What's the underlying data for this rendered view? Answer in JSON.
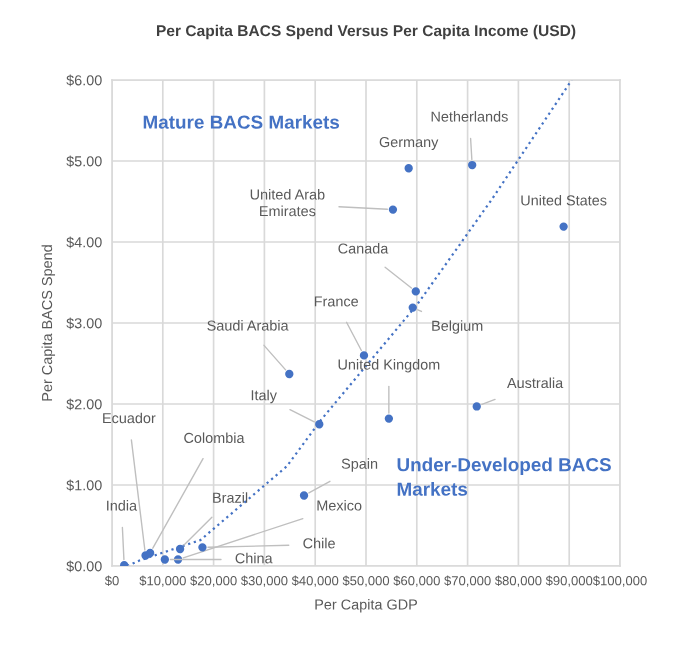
{
  "chart_data": {
    "type": "scatter",
    "title": "Per Capita BACS Spend Versus Per Capita Income (USD)",
    "xlabel": "Per Capita GDP",
    "ylabel": "Per Capita BACS Spend",
    "xlim": [
      0,
      100000
    ],
    "ylim": [
      0,
      6
    ],
    "xticks": [
      {
        "value": 0,
        "label": "$0"
      },
      {
        "value": 10000,
        "label": "$10,000"
      },
      {
        "value": 20000,
        "label": "$20,000"
      },
      {
        "value": 30000,
        "label": "$30,000"
      },
      {
        "value": 40000,
        "label": "$40,000"
      },
      {
        "value": 50000,
        "label": "$50,000"
      },
      {
        "value": 60000,
        "label": "$60,000"
      },
      {
        "value": 70000,
        "label": "$70,000"
      },
      {
        "value": 80000,
        "label": "$80,000"
      },
      {
        "value": 90000,
        "label": "$90,000"
      },
      {
        "value": 100000,
        "label": "$100,000"
      }
    ],
    "yticks": [
      {
        "value": 0,
        "label": "$0.00"
      },
      {
        "value": 1,
        "label": "$1.00"
      },
      {
        "value": 2,
        "label": "$2.00"
      },
      {
        "value": 3,
        "label": "$3.00"
      },
      {
        "value": 4,
        "label": "$4.00"
      },
      {
        "value": 5,
        "label": "$5.00"
      },
      {
        "value": 6,
        "label": "$6.00"
      }
    ],
    "grid": true,
    "marker": "circle",
    "annotations": [
      "Mature BACS Markets",
      "Under-Developed BACS\nMarkets"
    ],
    "series": [
      {
        "name": "India",
        "color": "#4472c4",
        "x": [
          2400
        ],
        "values": [
          0.01
        ]
      },
      {
        "name": "Ecuador",
        "color": "#4472c4",
        "x": [
          6600
        ],
        "values": [
          0.13
        ]
      },
      {
        "name": "Colombia",
        "color": "#4472c4",
        "x": [
          7500
        ],
        "values": [
          0.16
        ]
      },
      {
        "name": "Brazil",
        "color": "#4472c4",
        "x": [
          13400
        ],
        "values": [
          0.21
        ]
      },
      {
        "name": "Mexico",
        "color": "#4472c4",
        "x": [
          13000
        ],
        "values": [
          0.08
        ]
      },
      {
        "name": "China",
        "color": "#4472c4",
        "x": [
          10400
        ],
        "values": [
          0.08
        ]
      },
      {
        "name": "Chile",
        "color": "#4472c4",
        "x": [
          17800
        ],
        "values": [
          0.23
        ]
      },
      {
        "name": "Spain",
        "color": "#4472c4",
        "x": [
          37800
        ],
        "values": [
          0.87
        ]
      },
      {
        "name": "Italy",
        "color": "#4472c4",
        "x": [
          40800
        ],
        "values": [
          1.75
        ]
      },
      {
        "name": "Saudi Arabia",
        "color": "#4472c4",
        "x": [
          34900
        ],
        "values": [
          2.37
        ]
      },
      {
        "name": "France",
        "color": "#4472c4",
        "x": [
          49600
        ],
        "values": [
          2.6
        ]
      },
      {
        "name": "United Kingdom",
        "color": "#4472c4",
        "x": [
          54500
        ],
        "values": [
          1.82
        ]
      },
      {
        "name": "Australia",
        "color": "#4472c4",
        "x": [
          71800
        ],
        "values": [
          1.97
        ]
      },
      {
        "name": "Belgium",
        "color": "#4472c4",
        "x": [
          59200
        ],
        "values": [
          3.19
        ]
      },
      {
        "name": "Canada",
        "color": "#4472c4",
        "x": [
          59800
        ],
        "values": [
          3.39
        ]
      },
      {
        "name": "United Arab\nEmirates",
        "color": "#4472c4",
        "x": [
          55300
        ],
        "values": [
          4.4
        ]
      },
      {
        "name": "Germany",
        "color": "#4472c4",
        "x": [
          58400
        ],
        "values": [
          4.91
        ]
      },
      {
        "name": "Netherlands",
        "color": "#4472c4",
        "x": [
          70900
        ],
        "values": [
          4.95
        ]
      },
      {
        "name": "United States",
        "color": "#4472c4",
        "x": [
          88900
        ],
        "values": [
          4.19
        ]
      },
      {
        "type": "line",
        "line_style": "dotted",
        "marker": "none",
        "color": "#4472c4",
        "x": [
          3000,
          5500,
          17400,
          34400,
          41100,
          60100,
          74700,
          90500
        ],
        "values": [
          0.0,
          0.07,
          0.32,
          1.23,
          1.8,
          3.23,
          4.52,
          6.0
        ]
      }
    ]
  }
}
